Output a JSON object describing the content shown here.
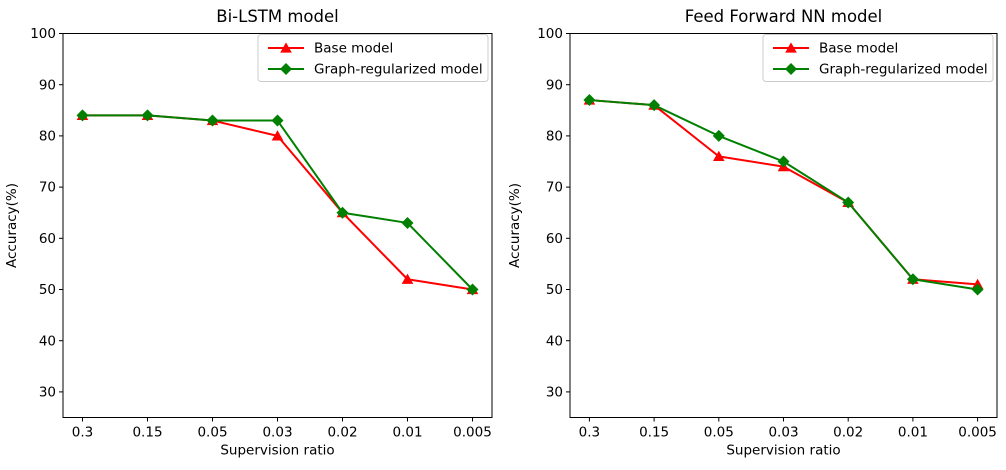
{
  "figure": {
    "background": "#ffffff",
    "spine_color": "#000000",
    "legend_border_color": "#cccccc"
  },
  "chart_data": [
    {
      "type": "line",
      "title": "Bi-LSTM model",
      "xlabel": "Supervision ratio",
      "ylabel": "Accuracy(%)",
      "categories": [
        "0.3",
        "0.15",
        "0.05",
        "0.03",
        "0.02",
        "0.01",
        "0.005"
      ],
      "yticks": [
        30,
        40,
        50,
        60,
        70,
        80,
        90,
        100
      ],
      "ylim": [
        25,
        100
      ],
      "grid": false,
      "legend_position": "upper right",
      "series": [
        {
          "name": "Base model",
          "color": "#ff0000",
          "marker": "triangle-up",
          "values": [
            84,
            84,
            83,
            80,
            65,
            52,
            50
          ]
        },
        {
          "name": "Graph-regularized model",
          "color": "#008000",
          "marker": "diamond",
          "values": [
            84,
            84,
            83,
            83,
            65,
            63,
            50
          ]
        }
      ]
    },
    {
      "type": "line",
      "title": "Feed Forward NN model",
      "xlabel": "Supervision ratio",
      "ylabel": "Accuracy(%)",
      "categories": [
        "0.3",
        "0.15",
        "0.05",
        "0.03",
        "0.02",
        "0.01",
        "0.005"
      ],
      "yticks": [
        30,
        40,
        50,
        60,
        70,
        80,
        90,
        100
      ],
      "ylim": [
        25,
        100
      ],
      "grid": false,
      "legend_position": "upper right",
      "series": [
        {
          "name": "Base model",
          "color": "#ff0000",
          "marker": "triangle-up",
          "values": [
            87,
            86,
            76,
            74,
            67,
            52,
            51
          ]
        },
        {
          "name": "Graph-regularized model",
          "color": "#008000",
          "marker": "diamond",
          "values": [
            87,
            86,
            80,
            75,
            67,
            52,
            50
          ]
        }
      ]
    }
  ]
}
